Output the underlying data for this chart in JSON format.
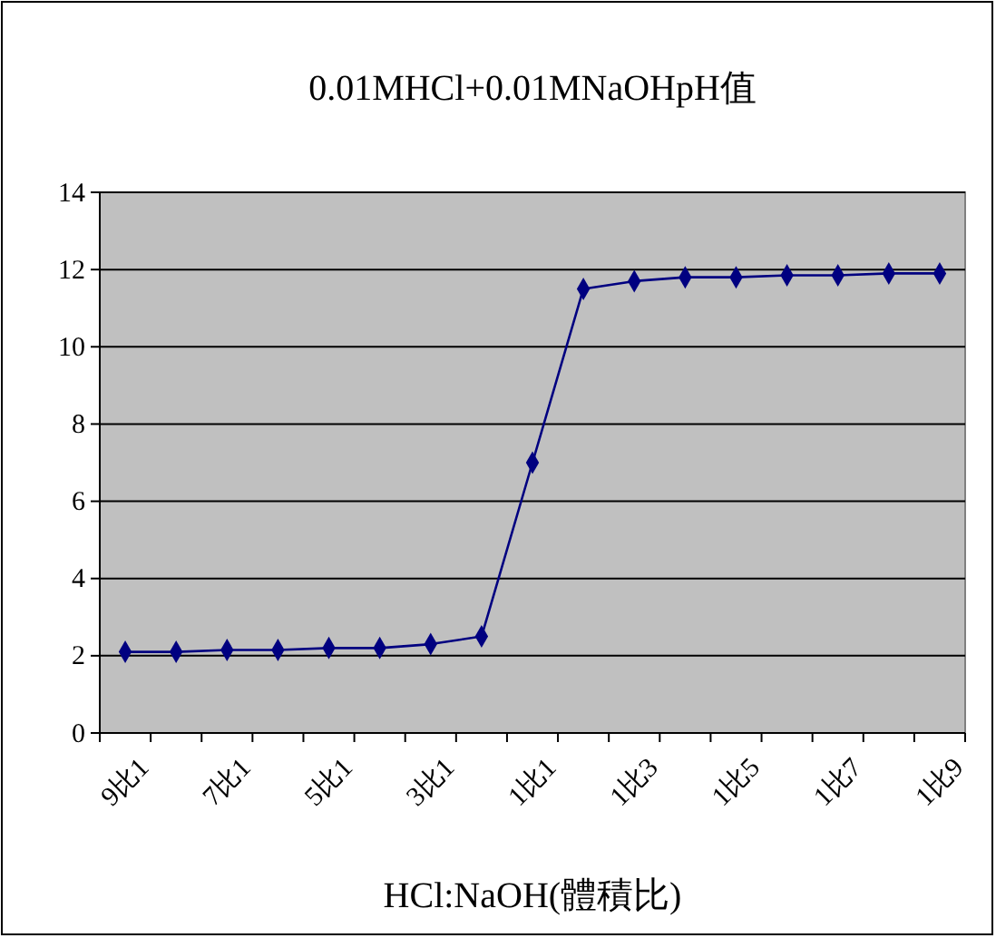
{
  "chart_data": {
    "type": "line",
    "title": "0.01MHCl+0.01MNaOHpH值",
    "xlabel": "HCl:NaOH(體積比)",
    "categories": [
      "9比1",
      null,
      "7比1",
      null,
      "5比1",
      null,
      "3比1",
      null,
      "1比1",
      null,
      "1比3",
      null,
      "1比5",
      null,
      "1比7",
      null,
      "1比9"
    ],
    "series": [
      {
        "color": "#000080",
        "values": [
          2.1,
          2.1,
          2.15,
          2.15,
          2.2,
          2.2,
          2.3,
          2.5,
          7.0,
          11.5,
          11.7,
          11.8,
          11.8,
          11.85,
          11.85,
          11.9,
          11.9
        ]
      }
    ],
    "ylim": [
      0,
      14
    ],
    "yticks": [
      0,
      2,
      4,
      6,
      8,
      10,
      12,
      14
    ],
    "grid": "y",
    "marker": "diamond",
    "line_style": "solid"
  }
}
